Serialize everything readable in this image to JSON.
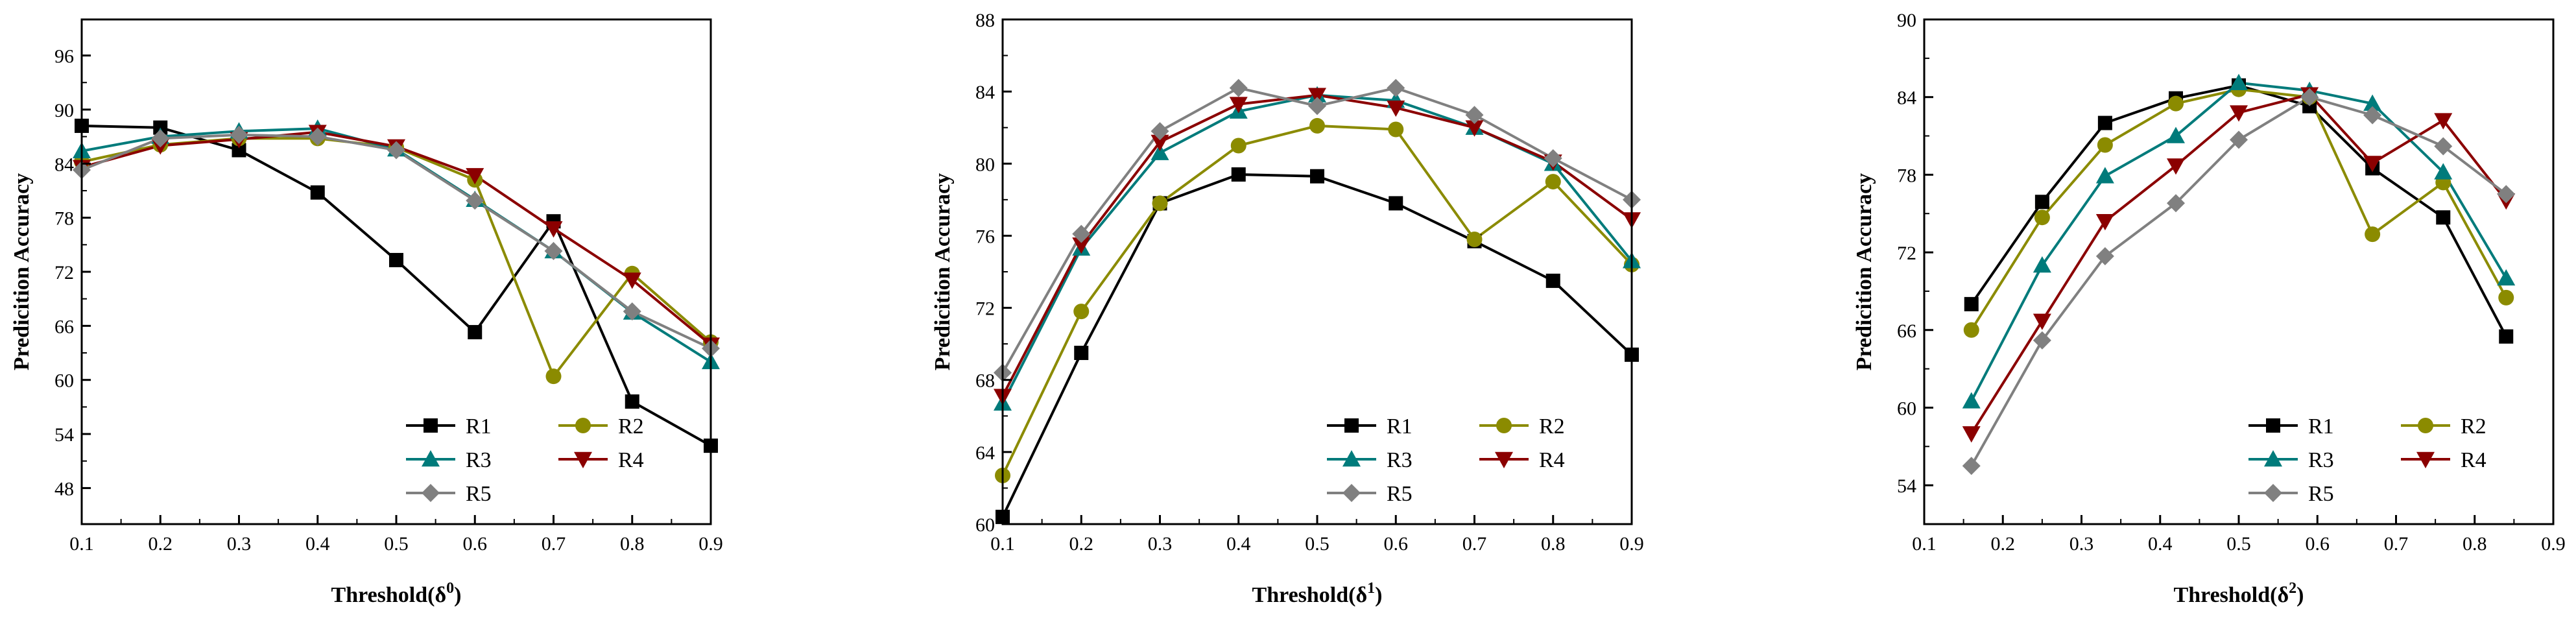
{
  "chart_data": [
    {
      "type": "line",
      "title": "",
      "xlabel": "Threshold(δ",
      "xlabel_sup": "0",
      "xlabel_close": ")",
      "ylabel": "Predicition Accuracy",
      "xlim": [
        0.1,
        0.9
      ],
      "ylim": [
        44,
        100
      ],
      "xticks": [
        0.1,
        0.2,
        0.3,
        0.4,
        0.5,
        0.6,
        0.7,
        0.8,
        0.9
      ],
      "yticks": [
        48,
        54,
        60,
        66,
        72,
        78,
        84,
        90,
        96
      ],
      "legend_position": "bottom-right",
      "series": [
        {
          "name": "R1",
          "color": "#000000",
          "marker": "square",
          "x": [
            0.1,
            0.2,
            0.3,
            0.4,
            0.5,
            0.6,
            0.7,
            0.8,
            0.9
          ],
          "values": [
            88.2,
            88.0,
            85.5,
            80.8,
            73.3,
            65.3,
            77.6,
            57.6,
            52.7
          ]
        },
        {
          "name": "R2",
          "color": "#8b8b00",
          "marker": "circle",
          "x": [
            0.1,
            0.2,
            0.3,
            0.4,
            0.5,
            0.6,
            0.7,
            0.8,
            0.9
          ],
          "values": [
            84.2,
            86.1,
            86.8,
            86.8,
            85.8,
            82.2,
            60.4,
            71.8,
            64.2
          ]
        },
        {
          "name": "R3",
          "color": "#007b7b",
          "marker": "triangle-up",
          "x": [
            0.1,
            0.2,
            0.3,
            0.4,
            0.5,
            0.6,
            0.7,
            0.8,
            0.9
          ],
          "values": [
            85.4,
            87.0,
            87.6,
            87.9,
            85.6,
            80.0,
            74.3,
            67.5,
            62.0
          ]
        },
        {
          "name": "R4",
          "color": "#8b0000",
          "marker": "triangle-down",
          "x": [
            0.1,
            0.2,
            0.3,
            0.4,
            0.5,
            0.6,
            0.7,
            0.8,
            0.9
          ],
          "values": [
            83.6,
            86.0,
            86.7,
            87.5,
            85.9,
            82.7,
            76.8,
            71.1,
            63.9
          ]
        },
        {
          "name": "R5",
          "color": "#808080",
          "marker": "diamond",
          "x": [
            0.1,
            0.2,
            0.3,
            0.4,
            0.5,
            0.6,
            0.7,
            0.8,
            0.9
          ],
          "values": [
            83.3,
            86.8,
            87.2,
            87.0,
            85.5,
            79.9,
            74.3,
            67.6,
            63.5
          ]
        }
      ]
    },
    {
      "type": "line",
      "title": "",
      "xlabel": "Threshold(δ",
      "xlabel_sup": "1",
      "xlabel_close": ")",
      "ylabel": "Predicition Accuracy",
      "xlim": [
        0.1,
        0.9
      ],
      "ylim": [
        60,
        88
      ],
      "xticks": [
        0.1,
        0.2,
        0.3,
        0.4,
        0.5,
        0.6,
        0.7,
        0.8,
        0.9
      ],
      "yticks": [
        60,
        64,
        68,
        72,
        76,
        80,
        84,
        88
      ],
      "legend_position": "bottom-right",
      "series": [
        {
          "name": "R1",
          "color": "#000000",
          "marker": "square",
          "x": [
            0.1,
            0.2,
            0.3,
            0.4,
            0.5,
            0.6,
            0.7,
            0.8,
            0.9
          ],
          "values": [
            60.4,
            69.5,
            77.8,
            79.4,
            79.3,
            77.8,
            75.7,
            73.5,
            69.4
          ]
        },
        {
          "name": "R2",
          "color": "#8b8b00",
          "marker": "circle",
          "x": [
            0.1,
            0.2,
            0.3,
            0.4,
            0.5,
            0.6,
            0.7,
            0.8,
            0.9
          ],
          "values": [
            62.7,
            71.8,
            77.8,
            81.0,
            82.1,
            81.9,
            75.8,
            79.0,
            74.4
          ]
        },
        {
          "name": "R3",
          "color": "#007b7b",
          "marker": "triangle-up",
          "x": [
            0.1,
            0.2,
            0.3,
            0.4,
            0.5,
            0.6,
            0.7,
            0.8,
            0.9
          ],
          "values": [
            66.7,
            75.3,
            80.6,
            82.9,
            83.8,
            83.5,
            82.0,
            80.0,
            74.6
          ]
        },
        {
          "name": "R4",
          "color": "#8b0000",
          "marker": "triangle-down",
          "x": [
            0.1,
            0.2,
            0.3,
            0.4,
            0.5,
            0.6,
            0.7,
            0.8,
            0.9
          ],
          "values": [
            67.1,
            75.5,
            81.2,
            83.3,
            83.8,
            83.1,
            82.0,
            80.1,
            76.9
          ]
        },
        {
          "name": "R5",
          "color": "#808080",
          "marker": "diamond",
          "x": [
            0.1,
            0.2,
            0.3,
            0.4,
            0.5,
            0.6,
            0.7,
            0.8,
            0.9
          ],
          "values": [
            68.4,
            76.1,
            81.8,
            84.2,
            83.2,
            84.2,
            82.7,
            80.3,
            78.0
          ]
        }
      ]
    },
    {
      "type": "line",
      "title": "",
      "xlabel": "Threshold(δ",
      "xlabel_sup": "2",
      "xlabel_close": ")",
      "ylabel": "Predicition Accuracy",
      "xlim": [
        0.1,
        0.9
      ],
      "ylim": [
        51,
        90
      ],
      "xticks": [
        0.1,
        0.2,
        0.3,
        0.4,
        0.5,
        0.6,
        0.7,
        0.8,
        0.9
      ],
      "yticks": [
        54,
        60,
        66,
        72,
        78,
        84,
        90
      ],
      "legend_position": "bottom-right",
      "series": [
        {
          "name": "R1",
          "color": "#000000",
          "marker": "square",
          "x": [
            0.16,
            0.25,
            0.33,
            0.42,
            0.5,
            0.59,
            0.67,
            0.76,
            0.84
          ],
          "values": [
            68.0,
            75.9,
            82.0,
            83.9,
            84.9,
            83.3,
            78.5,
            74.7,
            65.5
          ]
        },
        {
          "name": "R2",
          "color": "#8b8b00",
          "marker": "circle",
          "x": [
            0.16,
            0.25,
            0.33,
            0.42,
            0.5,
            0.59,
            0.67,
            0.76,
            0.84
          ],
          "values": [
            66.0,
            74.7,
            80.3,
            83.5,
            84.6,
            84.0,
            73.4,
            77.4,
            68.5
          ]
        },
        {
          "name": "R3",
          "color": "#007b7b",
          "marker": "triangle-up",
          "x": [
            0.16,
            0.25,
            0.33,
            0.42,
            0.5,
            0.59,
            0.67,
            0.76,
            0.84
          ],
          "values": [
            60.5,
            71.0,
            77.9,
            81.0,
            85.1,
            84.5,
            83.5,
            78.2,
            70.0
          ]
        },
        {
          "name": "R4",
          "color": "#8b0000",
          "marker": "triangle-down",
          "x": [
            0.16,
            0.25,
            0.33,
            0.42,
            0.5,
            0.59,
            0.67,
            0.76,
            0.84
          ],
          "values": [
            58.0,
            66.7,
            74.4,
            78.7,
            82.8,
            84.2,
            78.9,
            82.2,
            76.0
          ]
        },
        {
          "name": "R5",
          "color": "#808080",
          "marker": "diamond",
          "x": [
            0.16,
            0.25,
            0.33,
            0.42,
            0.5,
            0.59,
            0.67,
            0.76,
            0.84
          ],
          "values": [
            55.5,
            65.2,
            71.7,
            75.8,
            80.7,
            84.0,
            82.6,
            80.2,
            76.5
          ]
        }
      ]
    }
  ]
}
